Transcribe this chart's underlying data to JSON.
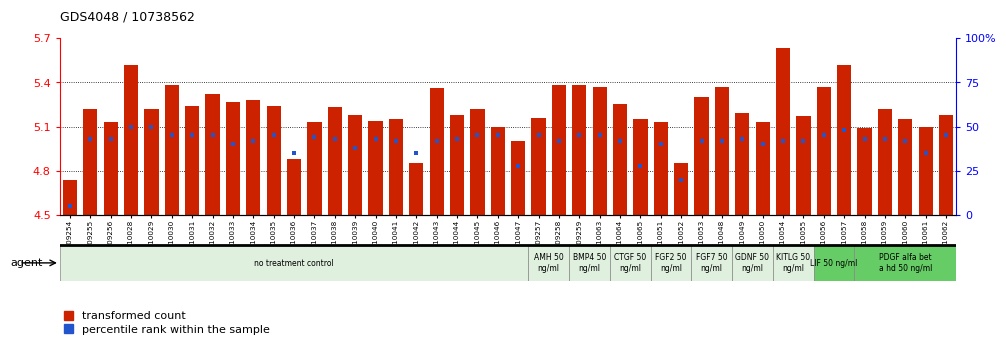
{
  "title": "GDS4048 / 10738562",
  "ylim": [
    4.5,
    5.7
  ],
  "yticks": [
    4.5,
    4.8,
    5.1,
    5.4,
    5.7
  ],
  "ytick_labels": [
    "4.5",
    "4.8",
    "5.1",
    "5.4",
    "5.7"
  ],
  "y2lim": [
    0,
    100
  ],
  "y2ticks": [
    0,
    25,
    50,
    75,
    100
  ],
  "y2tick_labels": [
    "0",
    "25",
    "50",
    "75",
    "100%"
  ],
  "bar_color": "#cc2200",
  "blue_color": "#2255cc",
  "bar_bottom": 4.5,
  "samples": [
    "GSM509254",
    "GSM509255",
    "GSM509256",
    "GSM510028",
    "GSM510029",
    "GSM510030",
    "GSM510031",
    "GSM510032",
    "GSM510033",
    "GSM510034",
    "GSM510035",
    "GSM510036",
    "GSM510037",
    "GSM510038",
    "GSM510039",
    "GSM510040",
    "GSM510041",
    "GSM510042",
    "GSM510043",
    "GSM510044",
    "GSM510045",
    "GSM510046",
    "GSM510047",
    "GSM509257",
    "GSM509258",
    "GSM509259",
    "GSM510063",
    "GSM510064",
    "GSM510065",
    "GSM510051",
    "GSM510052",
    "GSM510053",
    "GSM510048",
    "GSM510049",
    "GSM510050",
    "GSM510054",
    "GSM510055",
    "GSM510056",
    "GSM510057",
    "GSM510058",
    "GSM510059",
    "GSM510060",
    "GSM510061",
    "GSM510062"
  ],
  "red_values": [
    4.74,
    5.22,
    5.13,
    5.52,
    5.22,
    5.38,
    5.24,
    5.32,
    5.27,
    5.28,
    5.24,
    4.88,
    5.13,
    5.23,
    5.18,
    5.14,
    5.15,
    4.85,
    5.36,
    5.18,
    5.22,
    5.1,
    5.0,
    5.16,
    5.38,
    5.38,
    5.37,
    5.25,
    5.15,
    5.13,
    4.85,
    5.3,
    5.37,
    5.19,
    5.13,
    5.63,
    5.17,
    5.37,
    5.52,
    5.09,
    5.22,
    5.15,
    5.1,
    5.18
  ],
  "blue_values_pct": [
    5,
    43,
    43,
    50,
    50,
    45,
    45,
    45,
    40,
    42,
    45,
    35,
    44,
    43,
    38,
    43,
    42,
    35,
    42,
    43,
    45,
    45,
    28,
    45,
    42,
    45,
    45,
    42,
    28,
    40,
    20,
    42,
    42,
    43,
    40,
    42,
    42,
    45,
    48,
    43,
    43,
    42,
    35,
    45
  ],
  "groups": [
    {
      "label": "no treatment control",
      "start": 0,
      "end": 23,
      "color": "#dff0df",
      "bright": false
    },
    {
      "label": "AMH 50\nng/ml",
      "start": 23,
      "end": 25,
      "color": "#dff0df",
      "bright": false
    },
    {
      "label": "BMP4 50\nng/ml",
      "start": 25,
      "end": 27,
      "color": "#dff0df",
      "bright": false
    },
    {
      "label": "CTGF 50\nng/ml",
      "start": 27,
      "end": 29,
      "color": "#dff0df",
      "bright": false
    },
    {
      "label": "FGF2 50\nng/ml",
      "start": 29,
      "end": 31,
      "color": "#dff0df",
      "bright": false
    },
    {
      "label": "FGF7 50\nng/ml",
      "start": 31,
      "end": 33,
      "color": "#dff0df",
      "bright": false
    },
    {
      "label": "GDNF 50\nng/ml",
      "start": 33,
      "end": 35,
      "color": "#dff0df",
      "bright": false
    },
    {
      "label": "KITLG 50\nng/ml",
      "start": 35,
      "end": 37,
      "color": "#dff0df",
      "bright": false
    },
    {
      "label": "LIF 50 ng/ml",
      "start": 37,
      "end": 39,
      "color": "#66cc66",
      "bright": true
    },
    {
      "label": "PDGF alfa bet\na hd 50 ng/ml",
      "start": 39,
      "end": 44,
      "color": "#66cc66",
      "bright": true
    }
  ],
  "legend_red_label": "transformed count",
  "legend_blue_label": "percentile rank within the sample"
}
